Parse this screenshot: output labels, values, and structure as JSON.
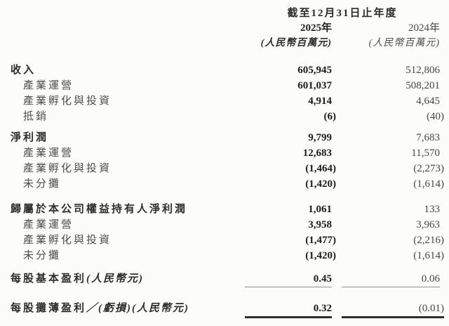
{
  "header": {
    "period_title": "截至12月31日止年度",
    "col2025": {
      "year": "2025年",
      "unit": "(人民幣百萬元)"
    },
    "col2024": {
      "year": "2024年",
      "unit": "(人民幣百萬元)"
    }
  },
  "table": {
    "rows": [
      {
        "label": "收入",
        "v2025": "605,945",
        "v2024": "512,806"
      },
      {
        "label": "產業運營",
        "v2025": "601,037",
        "v2024": "508,201"
      },
      {
        "label": "產業孵化與投資",
        "v2025": "4,914",
        "v2024": "4,645"
      },
      {
        "label": "抵銷",
        "v2025": "(6)",
        "v2024": "(40)"
      },
      {
        "label": "淨利潤",
        "v2025": "9,799",
        "v2024": "7,683"
      },
      {
        "label": "產業運營",
        "v2025": "12,683",
        "v2024": "11,570"
      },
      {
        "label": "產業孵化與投資",
        "v2025": "(1,464)",
        "v2024": "(2,273)"
      },
      {
        "label": "未分攤",
        "v2025": "(1,420)",
        "v2024": "(1,614)"
      },
      {
        "label": "歸屬於本公司權益持有人淨利潤",
        "v2025": "1,061",
        "v2024": "133"
      },
      {
        "label": "產業運營",
        "v2025": "3,958",
        "v2024": "3,963"
      },
      {
        "label": "產業孵化與投資",
        "v2025": "(1,477)",
        "v2024": "(2,216)"
      },
      {
        "label": "未分攤",
        "v2025": "(1,420)",
        "v2024": "(1,614)"
      },
      {
        "label": "每股基本盈利",
        "note": "(人民幣元)",
        "v2025": "0.45",
        "v2024": "0.06"
      },
      {
        "label": "每股攤薄盈利",
        "note": "／(虧損)(人民幣元)",
        "v2025": "0.32",
        "v2024": "(0.01)"
      }
    ]
  }
}
